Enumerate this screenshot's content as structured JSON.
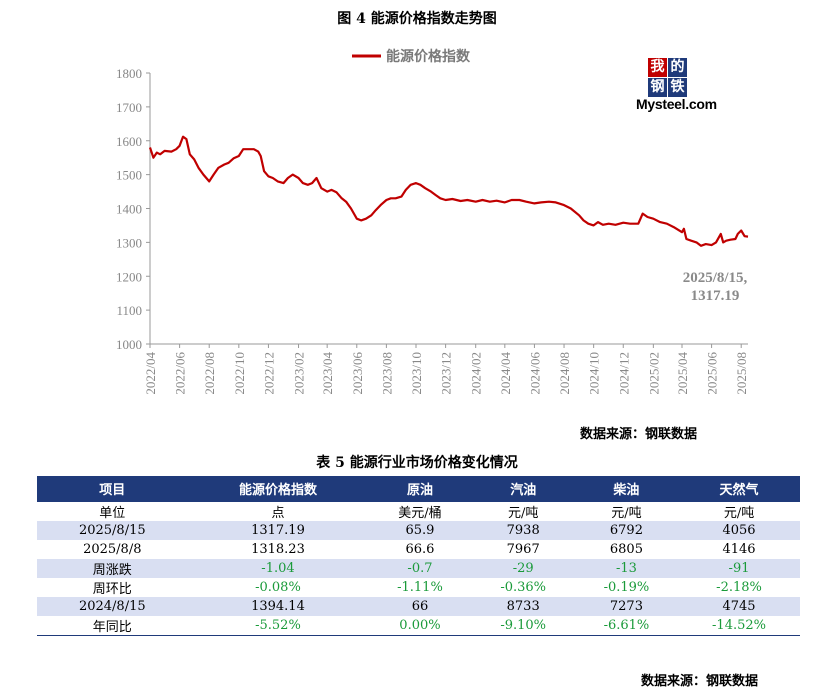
{
  "figure_title": "图 4  能源价格指数走势图",
  "table_title": "表 5 能源行业市场价格变化情况",
  "source_chart": "数据来源：钢联数据",
  "source_table": "数据来源：钢联数据",
  "logo": {
    "chars": [
      "我",
      "的",
      "钢",
      "铁"
    ],
    "text": "Mysteel.com"
  },
  "colors": {
    "line": "#c00000",
    "header": "#1f3a7a",
    "shade": "#d9dff2",
    "change": "#1a9a3a"
  },
  "chart_data": {
    "type": "line",
    "title": "图 4  能源价格指数走势图",
    "xlabel": "",
    "ylabel": "",
    "ylim": [
      1000,
      1800
    ],
    "yticks": [
      1000,
      1100,
      1200,
      1300,
      1400,
      1500,
      1600,
      1700,
      1800
    ],
    "xticks": [
      "2022/04",
      "2022/06",
      "2022/08",
      "2022/10",
      "2022/12",
      "2023/02",
      "2023/04",
      "2023/06",
      "2023/08",
      "2023/10",
      "2023/12",
      "2024/02",
      "2024/04",
      "2024/06",
      "2024/08",
      "2024/10",
      "2024/12",
      "2025/02",
      "2025/04",
      "2025/06",
      "2025/08"
    ],
    "grid": false,
    "legend": "top-center",
    "annotation": {
      "text": [
        "2025/8/15,",
        "1317.19"
      ]
    },
    "series": [
      {
        "name": "能源价格指数",
        "points": [
          [
            "2022-04-01",
            1580
          ],
          [
            "2022-04-08",
            1550
          ],
          [
            "2022-04-15",
            1565
          ],
          [
            "2022-04-22",
            1560
          ],
          [
            "2022-05-01",
            1570
          ],
          [
            "2022-05-15",
            1568
          ],
          [
            "2022-05-25",
            1575
          ],
          [
            "2022-06-01",
            1585
          ],
          [
            "2022-06-08",
            1612
          ],
          [
            "2022-06-15",
            1605
          ],
          [
            "2022-06-22",
            1560
          ],
          [
            "2022-07-01",
            1545
          ],
          [
            "2022-07-10",
            1520
          ],
          [
            "2022-07-20",
            1500
          ],
          [
            "2022-08-01",
            1480
          ],
          [
            "2022-08-10",
            1500
          ],
          [
            "2022-08-20",
            1520
          ],
          [
            "2022-09-01",
            1530
          ],
          [
            "2022-09-10",
            1535
          ],
          [
            "2022-09-20",
            1548
          ],
          [
            "2022-10-01",
            1555
          ],
          [
            "2022-10-10",
            1575
          ],
          [
            "2022-10-20",
            1575
          ],
          [
            "2022-11-01",
            1575
          ],
          [
            "2022-11-10",
            1568
          ],
          [
            "2022-11-15",
            1555
          ],
          [
            "2022-11-22",
            1510
          ],
          [
            "2022-12-01",
            1495
          ],
          [
            "2022-12-10",
            1490
          ],
          [
            "2022-12-20",
            1480
          ],
          [
            "2023-01-01",
            1475
          ],
          [
            "2023-01-10",
            1490
          ],
          [
            "2023-01-20",
            1500
          ],
          [
            "2023-02-01",
            1490
          ],
          [
            "2023-02-10",
            1475
          ],
          [
            "2023-02-20",
            1470
          ],
          [
            "2023-03-01",
            1475
          ],
          [
            "2023-03-10",
            1490
          ],
          [
            "2023-03-20",
            1460
          ],
          [
            "2023-04-01",
            1450
          ],
          [
            "2023-04-10",
            1455
          ],
          [
            "2023-04-20",
            1448
          ],
          [
            "2023-05-01",
            1430
          ],
          [
            "2023-05-10",
            1420
          ],
          [
            "2023-05-20",
            1400
          ],
          [
            "2023-06-01",
            1370
          ],
          [
            "2023-06-10",
            1365
          ],
          [
            "2023-06-20",
            1370
          ],
          [
            "2023-07-01",
            1380
          ],
          [
            "2023-07-10",
            1395
          ],
          [
            "2023-07-20",
            1410
          ],
          [
            "2023-08-01",
            1425
          ],
          [
            "2023-08-10",
            1430
          ],
          [
            "2023-08-20",
            1430
          ],
          [
            "2023-09-01",
            1435
          ],
          [
            "2023-09-10",
            1455
          ],
          [
            "2023-09-20",
            1470
          ],
          [
            "2023-10-01",
            1475
          ],
          [
            "2023-10-10",
            1470
          ],
          [
            "2023-10-20",
            1460
          ],
          [
            "2023-11-01",
            1450
          ],
          [
            "2023-11-10",
            1440
          ],
          [
            "2023-11-20",
            1430
          ],
          [
            "2023-12-01",
            1425
          ],
          [
            "2023-12-15",
            1428
          ],
          [
            "2024-01-01",
            1422
          ],
          [
            "2024-01-15",
            1425
          ],
          [
            "2024-02-01",
            1420
          ],
          [
            "2024-02-15",
            1425
          ],
          [
            "2024-03-01",
            1420
          ],
          [
            "2024-03-15",
            1423
          ],
          [
            "2024-04-01",
            1418
          ],
          [
            "2024-04-15",
            1425
          ],
          [
            "2024-05-01",
            1425
          ],
          [
            "2024-05-15",
            1420
          ],
          [
            "2024-06-01",
            1415
          ],
          [
            "2024-06-15",
            1418
          ],
          [
            "2024-07-01",
            1420
          ],
          [
            "2024-07-15",
            1418
          ],
          [
            "2024-08-01",
            1410
          ],
          [
            "2024-08-15",
            1400
          ],
          [
            "2024-09-01",
            1380
          ],
          [
            "2024-09-10",
            1365
          ],
          [
            "2024-09-20",
            1355
          ],
          [
            "2024-10-01",
            1350
          ],
          [
            "2024-10-10",
            1360
          ],
          [
            "2024-10-20",
            1352
          ],
          [
            "2024-11-01",
            1355
          ],
          [
            "2024-11-15",
            1352
          ],
          [
            "2024-12-01",
            1358
          ],
          [
            "2024-12-15",
            1355
          ],
          [
            "2025-01-01",
            1355
          ],
          [
            "2025-01-10",
            1385
          ],
          [
            "2025-01-20",
            1375
          ],
          [
            "2025-02-01",
            1370
          ],
          [
            "2025-02-15",
            1360
          ],
          [
            "2025-03-01",
            1355
          ],
          [
            "2025-03-15",
            1345
          ],
          [
            "2025-04-01",
            1330
          ],
          [
            "2025-04-05",
            1340
          ],
          [
            "2025-04-10",
            1310
          ],
          [
            "2025-04-20",
            1305
          ],
          [
            "2025-05-01",
            1300
          ],
          [
            "2025-05-10",
            1290
          ],
          [
            "2025-05-20",
            1295
          ],
          [
            "2025-06-01",
            1292
          ],
          [
            "2025-06-10",
            1300
          ],
          [
            "2025-06-20",
            1325
          ],
          [
            "2025-06-25",
            1300
          ],
          [
            "2025-07-01",
            1305
          ],
          [
            "2025-07-10",
            1308
          ],
          [
            "2025-07-20",
            1310
          ],
          [
            "2025-07-25",
            1325
          ],
          [
            "2025-08-01",
            1335
          ],
          [
            "2025-08-08",
            1318.23
          ],
          [
            "2025-08-15",
            1317.19
          ]
        ]
      }
    ]
  },
  "table": {
    "headers": [
      "项目",
      "能源价格指数",
      "原油",
      "汽油",
      "柴油",
      "天然气"
    ],
    "rows": [
      [
        "单位",
        "点",
        "美元/桶",
        "元/吨",
        "元/吨",
        "元/吨"
      ],
      [
        "2025/8/15",
        "1317.19",
        "65.9",
        "7938",
        "6792",
        "4056"
      ],
      [
        "2025/8/8",
        "1318.23",
        "66.6",
        "7967",
        "6805",
        "4146"
      ],
      [
        "周涨跌",
        "-1.04",
        "-0.7",
        "-29",
        "-13",
        "-91"
      ],
      [
        "周环比",
        "-0.08%",
        "-1.11%",
        "-0.36%",
        "-0.19%",
        "-2.18%"
      ],
      [
        "2024/8/15",
        "1394.14",
        "66",
        "8733",
        "7273",
        "4745"
      ],
      [
        "年同比",
        "-5.52%",
        "0.00%",
        "-9.10%",
        "-6.61%",
        "-14.52%"
      ]
    ]
  }
}
